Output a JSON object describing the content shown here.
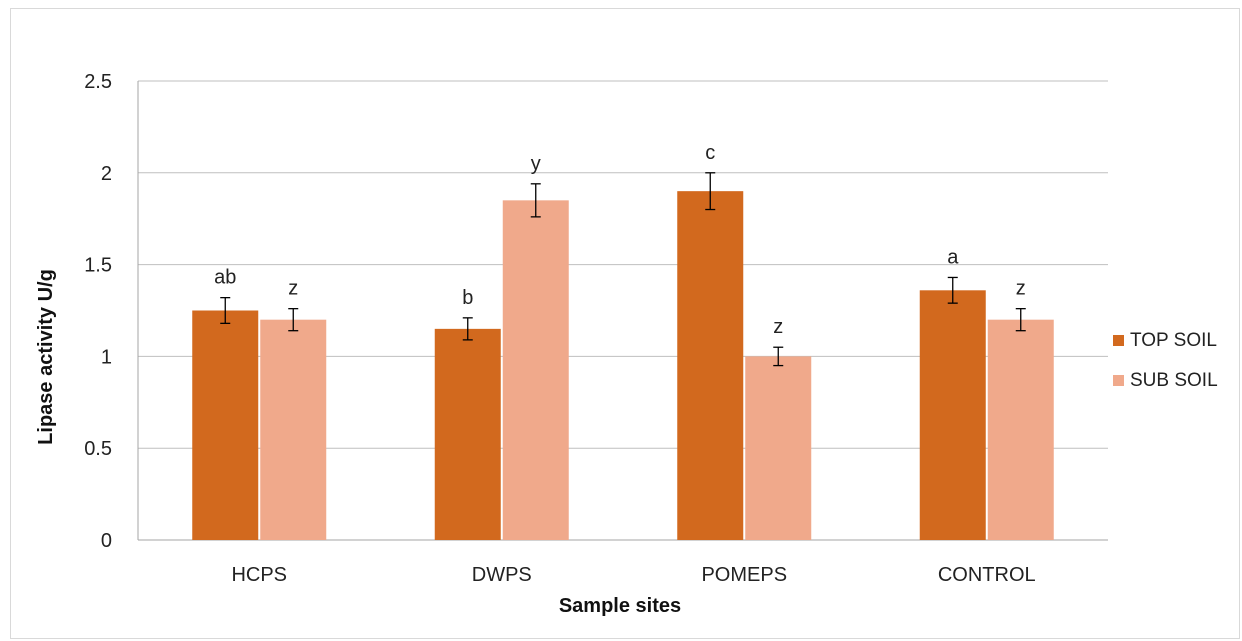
{
  "chart_data": {
    "type": "bar",
    "xlabel": "Sample sites",
    "ylabel": "Lipase activity U/g",
    "ylim": [
      0,
      2.5
    ],
    "yticks": [
      "0",
      "0.5",
      "1",
      "1.5",
      "2",
      "2.5"
    ],
    "grid": true,
    "legend": "right",
    "categories": [
      "HCPS",
      "DWPS",
      "POMEPS",
      "CONTROL"
    ],
    "series": [
      {
        "name": "TOP SOIL",
        "color": "#d2691e",
        "values": [
          1.25,
          1.15,
          1.9,
          1.36
        ],
        "errors": [
          0.07,
          0.06,
          0.1,
          0.07
        ],
        "labels": [
          "ab",
          "b",
          "c",
          "a"
        ]
      },
      {
        "name": "SUB SOIL",
        "color": "#f0a98b",
        "values": [
          1.2,
          1.85,
          1.0,
          1.2
        ],
        "errors": [
          0.06,
          0.09,
          0.05,
          0.06
        ],
        "labels": [
          "z",
          "y",
          "z",
          "z"
        ]
      }
    ]
  }
}
